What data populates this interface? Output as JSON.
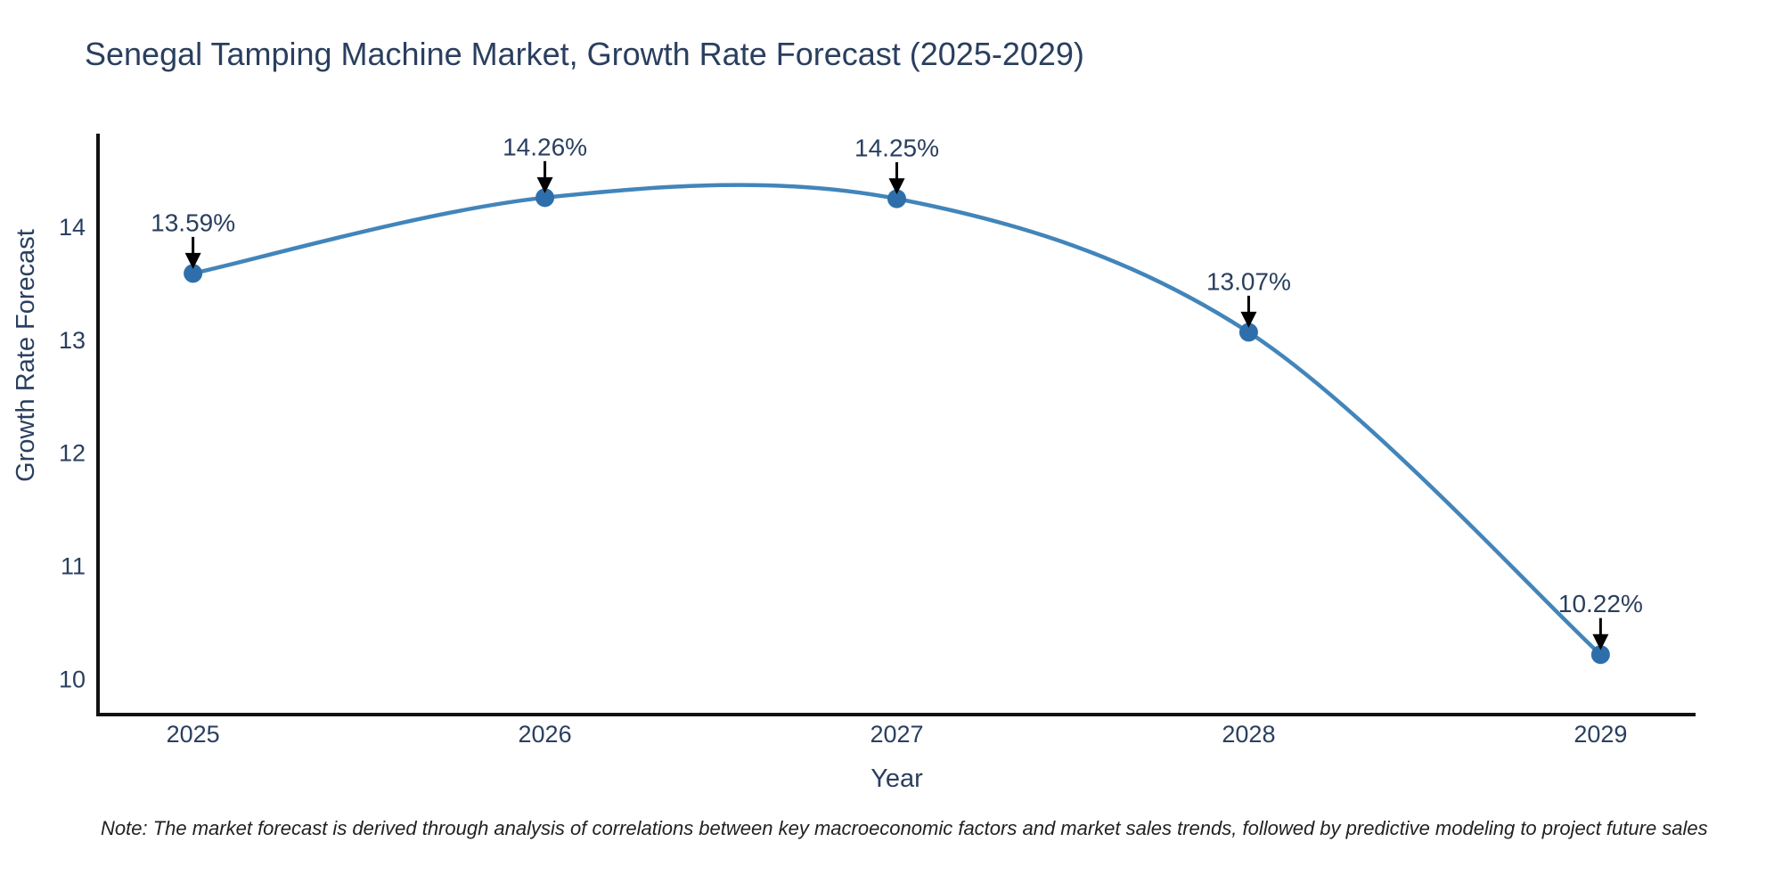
{
  "chart": {
    "title": "Senegal Tamping Machine Market, Growth Rate Forecast (2025-2029)",
    "xlabel": "Year",
    "ylabel": "Growth Rate Forecast",
    "note": "Note: The market forecast is derived through analysis of correlations between key macroeconomic factors and market sales trends, followed by predictive modeling to project future sales",
    "colors": {
      "text": "#2a3f5f",
      "note_text": "#222222",
      "axis_line": "#111111",
      "line": "#4285ba",
      "marker": "#2e6fab",
      "arrow": "#000000",
      "background": "#ffffff"
    }
  },
  "chart_data": {
    "type": "line",
    "x": [
      2025,
      2026,
      2027,
      2028,
      2029
    ],
    "series": [
      {
        "name": "Growth Rate Forecast",
        "values": [
          13.59,
          14.26,
          14.25,
          13.07,
          10.22
        ]
      }
    ],
    "point_labels": [
      "13.59%",
      "14.26%",
      "14.25%",
      "13.07%",
      "10.22%"
    ],
    "title": "Senegal Tamping Machine Market, Growth Rate Forecast (2025-2029)",
    "xlabel": "Year",
    "ylabel": "Growth Rate Forecast",
    "xlim": [
      2024.73,
      2029.27
    ],
    "ylim": [
      9.69,
      14.81
    ],
    "xticks": [
      2025,
      2026,
      2027,
      2028,
      2029
    ],
    "yticks": [
      10,
      11,
      12,
      13,
      14
    ],
    "line_shape": "spline",
    "grid": false,
    "legend_position": "none",
    "markers": true,
    "annotations_have_arrows": true
  }
}
